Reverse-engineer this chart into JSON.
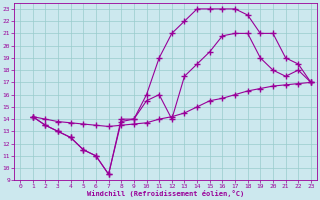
{
  "xlabel": "Windchill (Refroidissement éolien,°C)",
  "bg_color": "#cce8ee",
  "line_color": "#990099",
  "grid_color": "#99cccc",
  "xlim": [
    -0.5,
    23.5
  ],
  "ylim": [
    9,
    23.5
  ],
  "yticks": [
    9,
    10,
    11,
    12,
    13,
    14,
    15,
    16,
    17,
    18,
    19,
    20,
    21,
    22,
    23
  ],
  "xticks": [
    0,
    1,
    2,
    3,
    4,
    5,
    6,
    7,
    8,
    9,
    10,
    11,
    12,
    13,
    14,
    15,
    16,
    17,
    18,
    19,
    20,
    21,
    22,
    23
  ],
  "lines": [
    {
      "x": [
        1,
        2,
        3,
        4,
        5,
        6,
        7,
        8,
        9,
        10,
        11,
        12,
        13,
        14,
        15,
        16,
        17,
        18,
        19,
        20,
        21,
        22,
        23
      ],
      "y": [
        14.2,
        14.0,
        13.8,
        13.7,
        13.6,
        13.5,
        13.4,
        13.5,
        13.6,
        13.7,
        14.0,
        14.2,
        14.5,
        15.0,
        15.5,
        15.7,
        16.0,
        16.3,
        16.5,
        16.7,
        16.8,
        16.9,
        17.0
      ]
    },
    {
      "x": [
        1,
        2,
        3,
        4,
        5,
        6,
        7,
        8,
        9,
        10,
        11,
        12,
        13,
        14,
        15,
        16,
        17,
        18,
        19,
        20,
        21,
        22,
        23
      ],
      "y": [
        14.2,
        13.5,
        13.0,
        12.5,
        11.5,
        11.0,
        9.5,
        13.8,
        14.0,
        15.5,
        16.0,
        14.0,
        17.5,
        18.5,
        19.5,
        20.8,
        21.0,
        21.0,
        19.0,
        18.0,
        17.5,
        18.0,
        17.0
      ]
    },
    {
      "x": [
        1,
        2,
        3,
        4,
        5,
        6,
        7,
        8,
        9,
        10,
        11,
        12,
        13,
        14,
        15,
        16,
        17,
        18,
        19,
        20,
        21,
        22,
        23
      ],
      "y": [
        14.2,
        13.5,
        13.0,
        12.5,
        11.5,
        11.0,
        9.5,
        14.0,
        14.0,
        16.0,
        19.0,
        21.0,
        22.0,
        23.0,
        23.0,
        23.0,
        23.0,
        22.5,
        21.0,
        21.0,
        19.0,
        18.5,
        17.0
      ]
    }
  ]
}
